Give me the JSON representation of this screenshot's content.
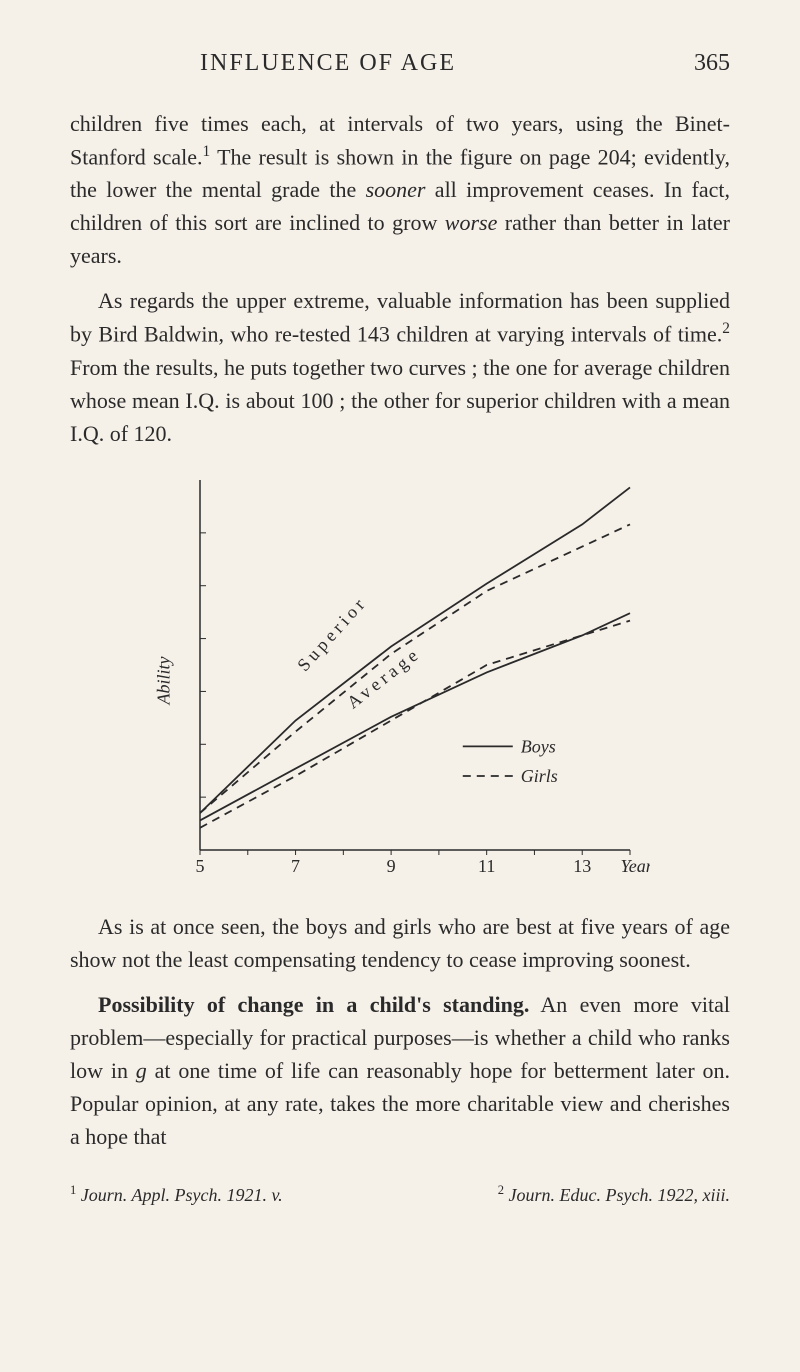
{
  "header": {
    "title": "INFLUENCE OF AGE",
    "page": "365"
  },
  "paragraphs": {
    "p1a": "children five times each, at intervals of two years, using the Binet-Stanford scale.",
    "p1sup": "1",
    "p1b": " The result is shown in the figure on page 204; evidently, the lower the mental grade the ",
    "p1c": "sooner",
    "p1d": " all improvement ceases. In fact, children of this sort are inclined to grow ",
    "p1e": "worse",
    "p1f": " rather than better in later years.",
    "p2a": "As regards the upper extreme, valuable information has been supplied by Bird Baldwin, who re-tested 143 children at varying intervals of time.",
    "p2sup": "2",
    "p2b": " From the results, he puts together two curves ; the one for average children whose mean I.Q. is about 100 ; the other for superior children with a mean I.Q. of 120.",
    "p3": "As is at once seen, the boys and girls who are best at five years of age show not the least compensating tendency to cease improving soonest.",
    "p4a": "Possibility of change in a child's standing.",
    "p4b": " An even more vital problem—especially for practical purposes—is whether a child who ranks low in ",
    "p4c": "g",
    "p4d": " at one time of life can reasonably hope for betterment later on. Popular opinion, at any rate, takes the more charitable view and cherishes a hope that"
  },
  "chart": {
    "type": "line",
    "ylabel": "Ability",
    "xlabel": "Years",
    "xticks": [
      "5",
      "7",
      "9",
      "11",
      "13"
    ],
    "xlim": [
      5,
      14
    ],
    "ylim": [
      0,
      100
    ],
    "legend": {
      "boys": "Boys",
      "girls": "Girls",
      "boys_style": "solid",
      "girls_style": "dashed"
    },
    "line_color": "#2a2a2a",
    "background_color": "#f5f0e8",
    "series": {
      "superior_label": "Superior",
      "average_label": "Average",
      "superior_boys": [
        [
          5,
          10
        ],
        [
          7,
          35
        ],
        [
          9,
          55
        ],
        [
          11,
          72
        ],
        [
          13,
          88
        ],
        [
          14,
          98
        ]
      ],
      "superior_girls": [
        [
          5,
          10
        ],
        [
          7,
          32
        ],
        [
          9,
          53
        ],
        [
          11,
          70
        ],
        [
          13,
          82
        ],
        [
          14,
          88
        ]
      ],
      "average_boys": [
        [
          5,
          8
        ],
        [
          7,
          22
        ],
        [
          9,
          36
        ],
        [
          11,
          48
        ],
        [
          13,
          58
        ],
        [
          14,
          64
        ]
      ],
      "average_girls": [
        [
          5,
          6
        ],
        [
          7,
          20
        ],
        [
          9,
          35
        ],
        [
          11,
          50
        ],
        [
          13,
          58
        ],
        [
          14,
          62
        ]
      ]
    }
  },
  "footnotes": {
    "f1sup": "1",
    "f1": " Journ. Appl. Psych. 1921. v.",
    "f2sup": "2",
    "f2": " Journ. Educ. Psych. 1922, xiii."
  }
}
